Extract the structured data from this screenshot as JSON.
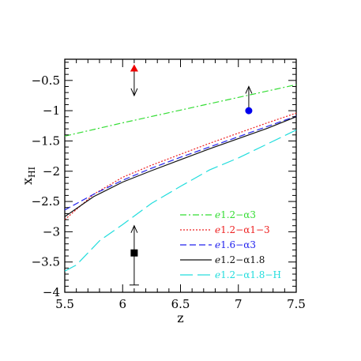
{
  "chart_data": {
    "type": "line",
    "title": "",
    "xlabel": "z",
    "ylabel": "x",
    "ylabel_sub": "HI",
    "xlim": [
      5.5,
      7.5
    ],
    "ylim": [
      -4,
      -0.15
    ],
    "x_ticks": [
      5.5,
      6,
      6.5,
      7,
      7.5
    ],
    "x_tick_labels": [
      "5.5",
      "6",
      "6.5",
      "7",
      "7.5"
    ],
    "y_ticks": [
      -4,
      -3.5,
      -3,
      -2.5,
      -2,
      -1.5,
      -1,
      -0.5
    ],
    "y_tick_labels": [
      "−4",
      "−3.5",
      "−3",
      "−2.5",
      "−2",
      "−1.5",
      "−1",
      "−0.5"
    ],
    "grid": false,
    "legend_position": "bottom-right",
    "series": [
      {
        "name": "ℯ1.2−α3",
        "color": "#33dd33",
        "dash": "dash-dot",
        "x": [
          5.5,
          6.0,
          6.5,
          7.0,
          7.5
        ],
        "y": [
          -1.42,
          -1.2,
          -0.99,
          -0.78,
          -0.57
        ]
      },
      {
        "name": "ℯ1.2−α1−3",
        "color": "#ee2222",
        "dash": "dotted",
        "x": [
          5.5,
          5.75,
          6.0,
          6.25,
          6.5,
          6.75,
          7.0,
          7.25,
          7.5
        ],
        "y": [
          -2.8,
          -2.38,
          -2.1,
          -1.9,
          -1.72,
          -1.54,
          -1.37,
          -1.2,
          -1.04
        ]
      },
      {
        "name": "ℯ1.6−α3",
        "color": "#2222ee",
        "dash": "dashed",
        "x": [
          5.5,
          5.75,
          6.0,
          6.25,
          6.5,
          6.75,
          7.0,
          7.25,
          7.5
        ],
        "y": [
          -2.64,
          -2.38,
          -2.15,
          -1.95,
          -1.77,
          -1.6,
          -1.43,
          -1.26,
          -1.09
        ]
      },
      {
        "name": "ℯ1.2−α1.8",
        "color": "#111111",
        "dash": "solid",
        "x": [
          5.5,
          5.75,
          6.0,
          6.25,
          6.5,
          6.75,
          7.0,
          7.25,
          7.5
        ],
        "y": [
          -2.75,
          -2.42,
          -2.18,
          -1.99,
          -1.81,
          -1.63,
          -1.46,
          -1.29,
          -1.1
        ]
      },
      {
        "name": "ℯ1.2−α1.8−H",
        "color": "#22dddd",
        "dash": "long-dash",
        "x": [
          5.5,
          5.6,
          5.7,
          5.8,
          6.0,
          6.25,
          6.5,
          6.75,
          7.0,
          7.25,
          7.5
        ],
        "y": [
          -3.65,
          -3.55,
          -3.35,
          -3.15,
          -2.88,
          -2.53,
          -2.25,
          -1.98,
          -1.78,
          -1.55,
          -1.32
        ]
      }
    ],
    "markers": [
      {
        "shape": "triangle",
        "color": "#ee0000",
        "x": 6.1,
        "y": -0.3,
        "arrow": "down",
        "arrow_to": -0.75
      },
      {
        "shape": "circle",
        "color": "#0000ee",
        "x": 7.09,
        "y": -1.0,
        "arrow": "up",
        "arrow_to": -0.6
      },
      {
        "shape": "square",
        "color": "#000000",
        "x": 6.1,
        "y": -3.35,
        "arrow": "up",
        "arrow_to": -2.9,
        "error_low": -3.88
      }
    ]
  }
}
